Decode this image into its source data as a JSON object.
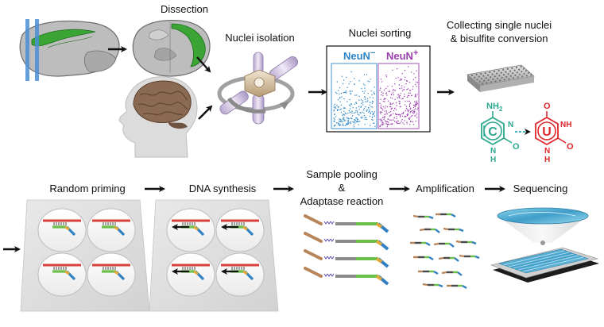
{
  "steps": {
    "dissection": "Dissection",
    "nuclei_isolation": "Nuclei isolation",
    "nuclei_sorting": "Nuclei sorting",
    "collecting_line1": "Collecting single nuclei",
    "collecting_line2": "& bisulfite conversion",
    "random_priming": "Random priming",
    "dna_synthesis": "DNA synthesis",
    "pooling_line1": "Sample pooling",
    "pooling_line2": "&",
    "pooling_line3": "Adaptase reaction",
    "amplification": "Amplification",
    "sequencing": "Sequencing"
  },
  "sorting_plot": {
    "gate_left": "NeuN",
    "gate_left_sup": "−",
    "gate_right": "NeuN",
    "gate_right_sup": "+"
  },
  "bases": {
    "cytosine_letter": "C",
    "uracil_letter": "U",
    "amine": "NH",
    "amine_sub": "2",
    "n_atom": "N",
    "h_atom": "H",
    "nh_atom": "NH",
    "o_atom": "O"
  },
  "colors": {
    "neun_negative": "#2a86c8",
    "neun_positive": "#9b3fae",
    "cytosine": "#2aa88e",
    "uracil": "#e0262b",
    "tract_green": "#3aa535",
    "template_red": "#d9413a",
    "primer_green": "#6cbf4a",
    "primer_blue": "#2f7fc1"
  }
}
